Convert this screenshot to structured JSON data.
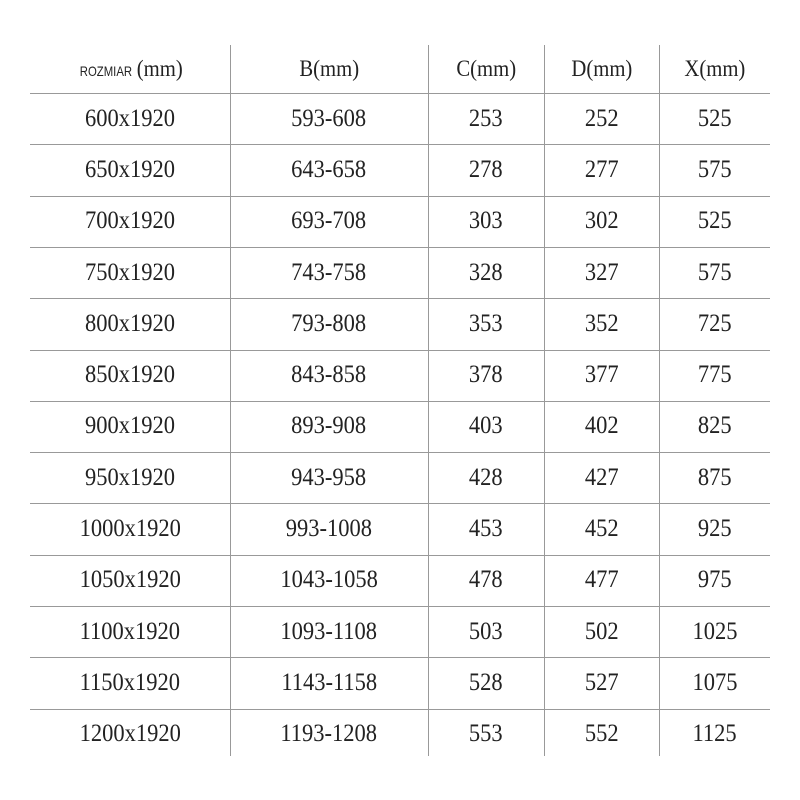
{
  "table": {
    "headers": [
      {
        "prefix": "ROZMIAR",
        "label": "(mm)"
      },
      {
        "prefix": "",
        "label": "B(mm)"
      },
      {
        "prefix": "",
        "label": "C(mm)"
      },
      {
        "prefix": "",
        "label": "D(mm)"
      },
      {
        "prefix": "",
        "label": "X(mm)"
      }
    ],
    "rows": [
      [
        "600x1920",
        "593-608",
        "253",
        "252",
        "525"
      ],
      [
        "650x1920",
        "643-658",
        "278",
        "277",
        "575"
      ],
      [
        "700x1920",
        "693-708",
        "303",
        "302",
        "525"
      ],
      [
        "750x1920",
        "743-758",
        "328",
        "327",
        "575"
      ],
      [
        "800x1920",
        "793-808",
        "353",
        "352",
        "725"
      ],
      [
        "850x1920",
        "843-858",
        "378",
        "377",
        "775"
      ],
      [
        "900x1920",
        "893-908",
        "403",
        "402",
        "825"
      ],
      [
        "950x1920",
        "943-958",
        "428",
        "427",
        "875"
      ],
      [
        "1000x1920",
        "993-1008",
        "453",
        "452",
        "925"
      ],
      [
        "1050x1920",
        "1043-1058",
        "478",
        "477",
        "975"
      ],
      [
        "1100x1920",
        "1093-1108",
        "503",
        "502",
        "1025"
      ],
      [
        "1150x1920",
        "1143-1158",
        "528",
        "527",
        "1075"
      ],
      [
        "1200x1920",
        "1193-1208",
        "553",
        "552",
        "1125"
      ]
    ]
  }
}
